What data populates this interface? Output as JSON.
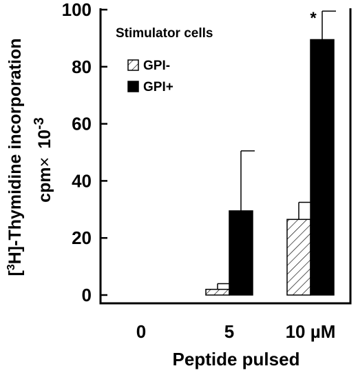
{
  "chart_data": {
    "type": "bar",
    "ylabel_line1_sup": "3",
    "ylabel_line1_prefix": "[",
    "ylabel_line1_suffix": "H]-Thymidine incorporation",
    "ylabel_line2_main": "cpm",
    "ylabel_line2_times": "×",
    "ylabel_line2_ten": "10",
    "ylabel_line2_exp": "-3",
    "xlabel": "Peptide pulsed",
    "categories": [
      "0",
      "5",
      "10 µM"
    ],
    "ylim": [
      0,
      100
    ],
    "yticks": [
      0,
      20,
      40,
      60,
      80,
      100
    ],
    "legend_title": "Stimulator cells",
    "legend_position": "top-left",
    "series": [
      {
        "name": "GPI-",
        "pattern": "hatched",
        "values": [
          0,
          2,
          26.5
        ],
        "errors": [
          0,
          2,
          6
        ]
      },
      {
        "name": "GPI+",
        "pattern": "solid",
        "color": "#000000",
        "values": [
          0,
          29.5,
          89.5
        ],
        "errors": [
          0,
          21,
          10
        ]
      }
    ],
    "annotations": [
      {
        "category_index": 2,
        "series_index": 1,
        "text": "*"
      }
    ]
  }
}
